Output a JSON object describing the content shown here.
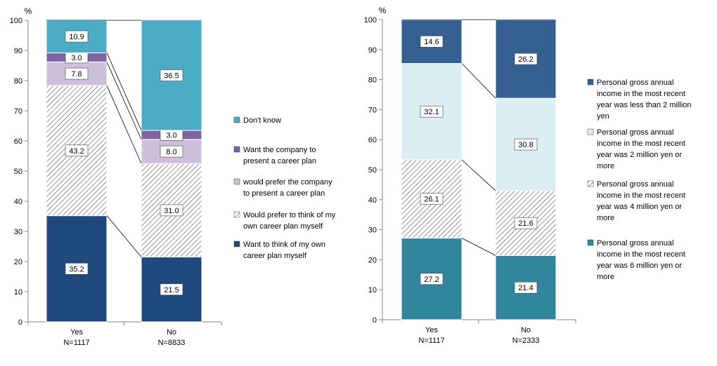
{
  "chart_data": [
    {
      "type": "bar",
      "stacked": true,
      "normalized": true,
      "y_unit": "%",
      "ylim": [
        0,
        100
      ],
      "yticks": [
        0,
        10,
        20,
        30,
        40,
        50,
        60,
        70,
        80,
        90,
        100
      ],
      "grid": false,
      "legend_position": "right",
      "categories": [
        "Yes",
        "No"
      ],
      "category_n": [
        "N=1117",
        "N=8833"
      ],
      "series": [
        {
          "name": "Want to think of my own career plan myself",
          "legend_lines": [
            "Want to think of my own",
            "career plan myself"
          ],
          "values": [
            35.2,
            21.5
          ],
          "color": "#1f497d",
          "fill_style": "solid",
          "label_text": [
            "35.2",
            "21.5"
          ]
        },
        {
          "name": "Would prefer to think of my own career plan myself",
          "legend_lines": [
            "Would prefer to think of my",
            "own career plan myself"
          ],
          "values": [
            43.2,
            31.0
          ],
          "color": "#404040",
          "fill_style": "hatch",
          "label_text": [
            "43.2",
            "31.0"
          ]
        },
        {
          "name": "would prefer the company to present a career plan",
          "legend_lines": [
            "would prefer the company",
            "to present a career plan"
          ],
          "values": [
            7.8,
            8.0
          ],
          "color": "#ccc0da",
          "fill_style": "solid",
          "label_text": [
            "7.8",
            "8.0"
          ]
        },
        {
          "name": "Want the company to present a career plan",
          "legend_lines": [
            "Want the company to",
            "present a career plan"
          ],
          "values": [
            3.0,
            3.0
          ],
          "color": "#8064a2",
          "fill_style": "solid",
          "label_text": [
            "3.0",
            "3.0"
          ]
        },
        {
          "name": "Don't know",
          "legend_lines": [
            "Don't know"
          ],
          "values": [
            10.9,
            36.5
          ],
          "color": "#4bacc6",
          "fill_style": "solid",
          "label_text": [
            "10.9",
            "36.5"
          ]
        }
      ]
    },
    {
      "type": "bar",
      "stacked": true,
      "normalized": true,
      "y_unit": "%",
      "ylim": [
        0,
        100
      ],
      "yticks": [
        0,
        10,
        20,
        30,
        40,
        50,
        60,
        70,
        80,
        90,
        100
      ],
      "grid": false,
      "legend_position": "right",
      "categories": [
        "Yes",
        "No"
      ],
      "category_n": [
        "N=1117",
        "N=2333"
      ],
      "series": [
        {
          "name": "Personal gross annual income in the most recent year was 6 million yen or more",
          "legend_lines": [
            "Personal gross annual",
            "income in the most recent",
            "year was 6 million yen or",
            "more"
          ],
          "values": [
            27.2,
            21.4
          ],
          "color": "#31859c",
          "fill_style": "solid",
          "label_text": [
            "27.2",
            "21.4"
          ]
        },
        {
          "name": "Personal gross annual income in the most recent year was 4 million yen or more",
          "legend_lines": [
            "Personal gross annual",
            "income in the most recent",
            "year was 4 million yen or",
            "more"
          ],
          "values": [
            26.1,
            21.6
          ],
          "color": "#404040",
          "fill_style": "hatch",
          "label_text": [
            "26.1",
            "21.6"
          ]
        },
        {
          "name": "Personal gross annual income in the most recent year was 2 million yen or more",
          "legend_lines": [
            "Personal gross annual",
            "income in the most recent",
            "year was 2 million yen or",
            "more"
          ],
          "values": [
            32.1,
            30.8
          ],
          "color": "#dbeef3",
          "fill_style": "solid",
          "label_text": [
            "32.1",
            "30.8"
          ]
        },
        {
          "name": "Personal gross annual income in the most recent year was less than 2 million yen",
          "legend_lines": [
            "Personal gross annual",
            "income in the most recent",
            "year was less than  2 million",
            "yen"
          ],
          "values": [
            14.6,
            26.2
          ],
          "color": "#376092",
          "fill_style": "solid",
          "label_text": [
            "14.6",
            "26.2"
          ]
        }
      ]
    }
  ]
}
